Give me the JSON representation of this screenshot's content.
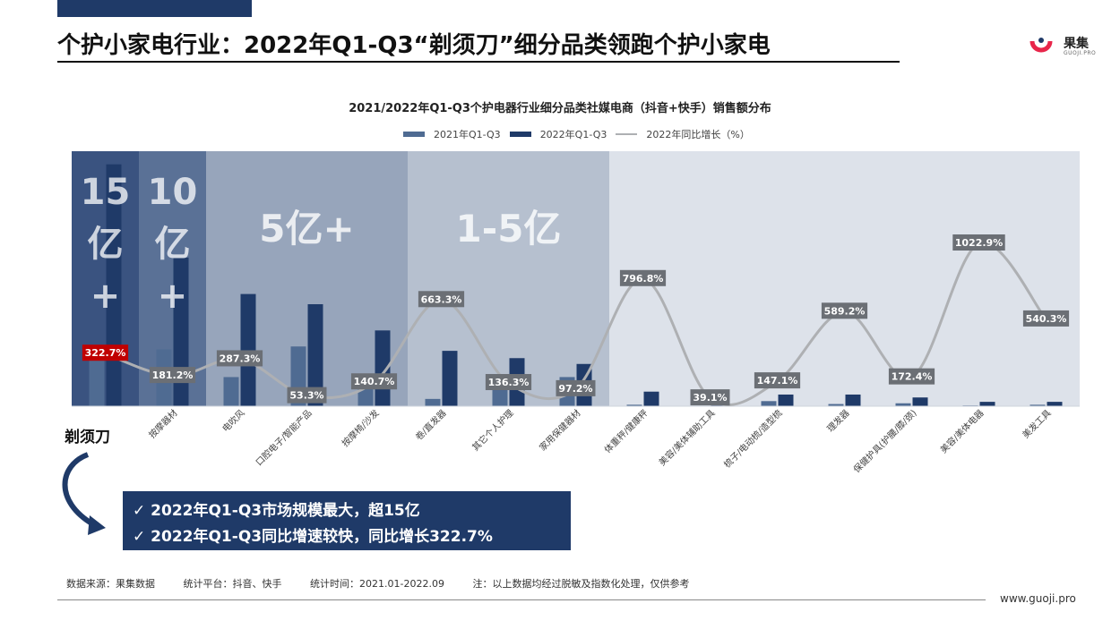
{
  "page": {
    "title": "个护小家电行业：2022年Q1-Q3“剃须刀”细分品类领跑个护小家电",
    "logo_text": "果集",
    "logo_sub": "GUOJI.PRO",
    "razor_label": "剃须刀",
    "callouts": [
      "✓  2022年Q1-Q3市场规模最大，超15亿",
      "✓  2022年Q1-Q3同比增速较快，同比增长322.7%"
    ],
    "footer": {
      "source": "数据来源：果集数据",
      "platform": "统计平台：抖音、快手",
      "period": "统计时间：2021.01-2022.09",
      "note": "注：以上数据均经过脱敏及指数化处理，仅供参考"
    },
    "website": "www.guoji.pro"
  },
  "chart_data": {
    "type": "bar",
    "title": "2021/2022年Q1-Q3个护电器行业细分品类社媒电商（抖音+快手）销售额分布",
    "legend": [
      "2021年Q1-Q3",
      "2022年Q1-Q3",
      "2022年同比增长（%）"
    ],
    "categories": [
      "剃须刀",
      "按摩器材",
      "电吹风",
      "口腔电子/智能产品",
      "按摩椅/沙发",
      "卷/直发器",
      "其它个人护理",
      "家用保健器材",
      "体重秤/健康秤",
      "美容/美体辅助工具",
      "梳子/电动梳/造型梳",
      "理发器",
      "保健护具(护腰/膝/颈)",
      "美容/美体电器",
      "美发工具"
    ],
    "series": [
      {
        "name": "2021年Q1-Q3",
        "values": [
          4.2,
          3.9,
          2.0,
          4.1,
          2.1,
          0.5,
          2.0,
          2.0,
          0.1,
          0,
          0.35,
          0.15,
          0.2,
          0.05,
          0.1
        ]
      },
      {
        "name": "2022年Q1-Q3",
        "values": [
          16.6,
          10.2,
          7.7,
          7.0,
          5.2,
          3.8,
          3.3,
          2.9,
          1.0,
          0.05,
          0.8,
          0.8,
          0.6,
          0.3,
          0.3
        ]
      },
      {
        "name": "2022年同比增长（%）",
        "values": [
          322.7,
          181.2,
          287.3,
          53.3,
          140.7,
          663.3,
          136.3,
          97.2,
          796.8,
          39.1,
          147.1,
          589.2,
          172.4,
          1022.9,
          540.3
        ],
        "labels": [
          "322.7%",
          "181.2%",
          "287.3%",
          "53.3%",
          "140.7%",
          "663.3%",
          "136.3%",
          "97.2%",
          "796.8%",
          "39.1%",
          "147.1%",
          "589.2%",
          "172.4%",
          "1022.9%",
          "540.3%"
        ]
      }
    ],
    "tiers": [
      {
        "label": "15\n亿\n+",
        "from": 0,
        "to": 0
      },
      {
        "label": "10\n亿\n+",
        "from": 1,
        "to": 1
      },
      {
        "label": "5亿+",
        "from": 2,
        "to": 4
      },
      {
        "label": "1-5亿",
        "from": 5,
        "to": 7
      },
      {
        "label": "",
        "from": 8,
        "to": 14
      }
    ],
    "colors": {
      "s2021": "#4f6b92",
      "s2022": "#1f3a68",
      "line": "#aeb0b3",
      "highlight": "#c00000",
      "tier0": "#3a5380",
      "tier1": "#5a7196",
      "tier2": "#97a5bb",
      "tier3": "#b6c0cf",
      "tier4": "#dde2ea"
    }
  }
}
